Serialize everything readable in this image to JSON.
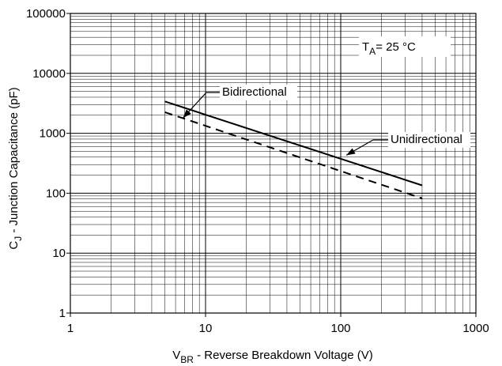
{
  "chart_data": {
    "type": "line",
    "title": "",
    "x_scale": "log",
    "y_scale": "log",
    "xlim": [
      1,
      1000
    ],
    "ylim": [
      1,
      100000
    ],
    "grid": true,
    "x_ticks": [
      {
        "value": 1,
        "label": "1"
      },
      {
        "value": 10,
        "label": "10"
      },
      {
        "value": 100,
        "label": "100"
      },
      {
        "value": 1000,
        "label": "1000"
      }
    ],
    "y_ticks": [
      {
        "value": 1,
        "label": "1"
      },
      {
        "value": 10,
        "label": "10"
      },
      {
        "value": 100,
        "label": "100"
      },
      {
        "value": 1000,
        "label": "1000"
      },
      {
        "value": 10000,
        "label": "10000"
      },
      {
        "value": 100000,
        "label": "100000"
      }
    ],
    "xlabel": {
      "main": "V",
      "sub": "BR",
      "rest": " - Reverse Breakdown Voltage (V)"
    },
    "ylabel": {
      "main": "C",
      "sub": "J",
      "rest": " - Junction Capacitance (pF)"
    },
    "condition": {
      "main": "T",
      "sub": "A",
      "rest": "= 25 °C"
    },
    "series": [
      {
        "name": "Unidirectional",
        "style": "solid",
        "x": [
          5,
          400
        ],
        "y": [
          3400,
          135
        ]
      },
      {
        "name": "Bidirectional",
        "style": "dashed",
        "x": [
          5,
          400
        ],
        "y": [
          2250,
          82
        ]
      }
    ],
    "annotations": [
      {
        "series": "Bidirectional",
        "label": "Bidirectional",
        "point": [
          6.8,
          1800
        ]
      },
      {
        "series": "Unidirectional",
        "label": "Unidirectional",
        "point": [
          110,
          430
        ]
      }
    ]
  }
}
